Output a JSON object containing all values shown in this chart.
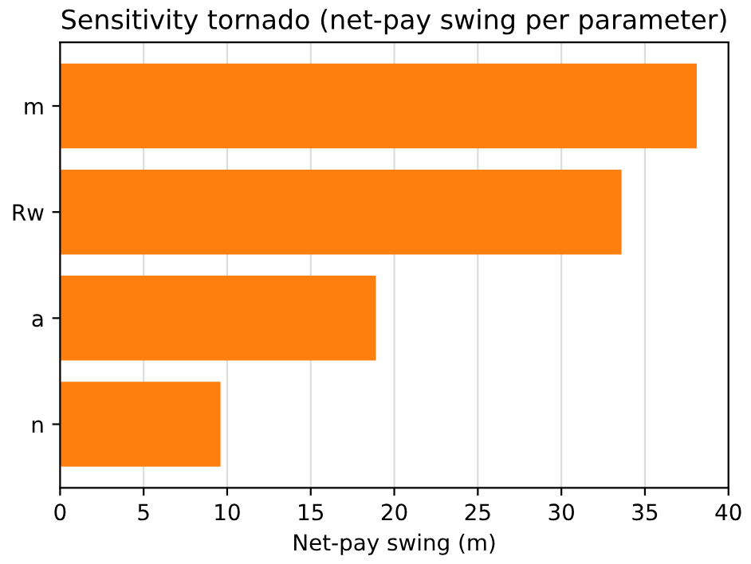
{
  "chart_data": {
    "type": "bar",
    "orientation": "horizontal",
    "title": "Sensitivity tornado (net-pay swing per parameter)",
    "xlabel": "Net-pay swing (m)",
    "categories": [
      "m",
      "Rw",
      "a",
      "n"
    ],
    "values": [
      38.1,
      33.6,
      18.9,
      9.6
    ],
    "color": "#ff7f0e",
    "xlim": [
      0,
      40
    ],
    "xticks": [
      0,
      5,
      10,
      15,
      20,
      25,
      30,
      35,
      40
    ],
    "grid": "x"
  }
}
